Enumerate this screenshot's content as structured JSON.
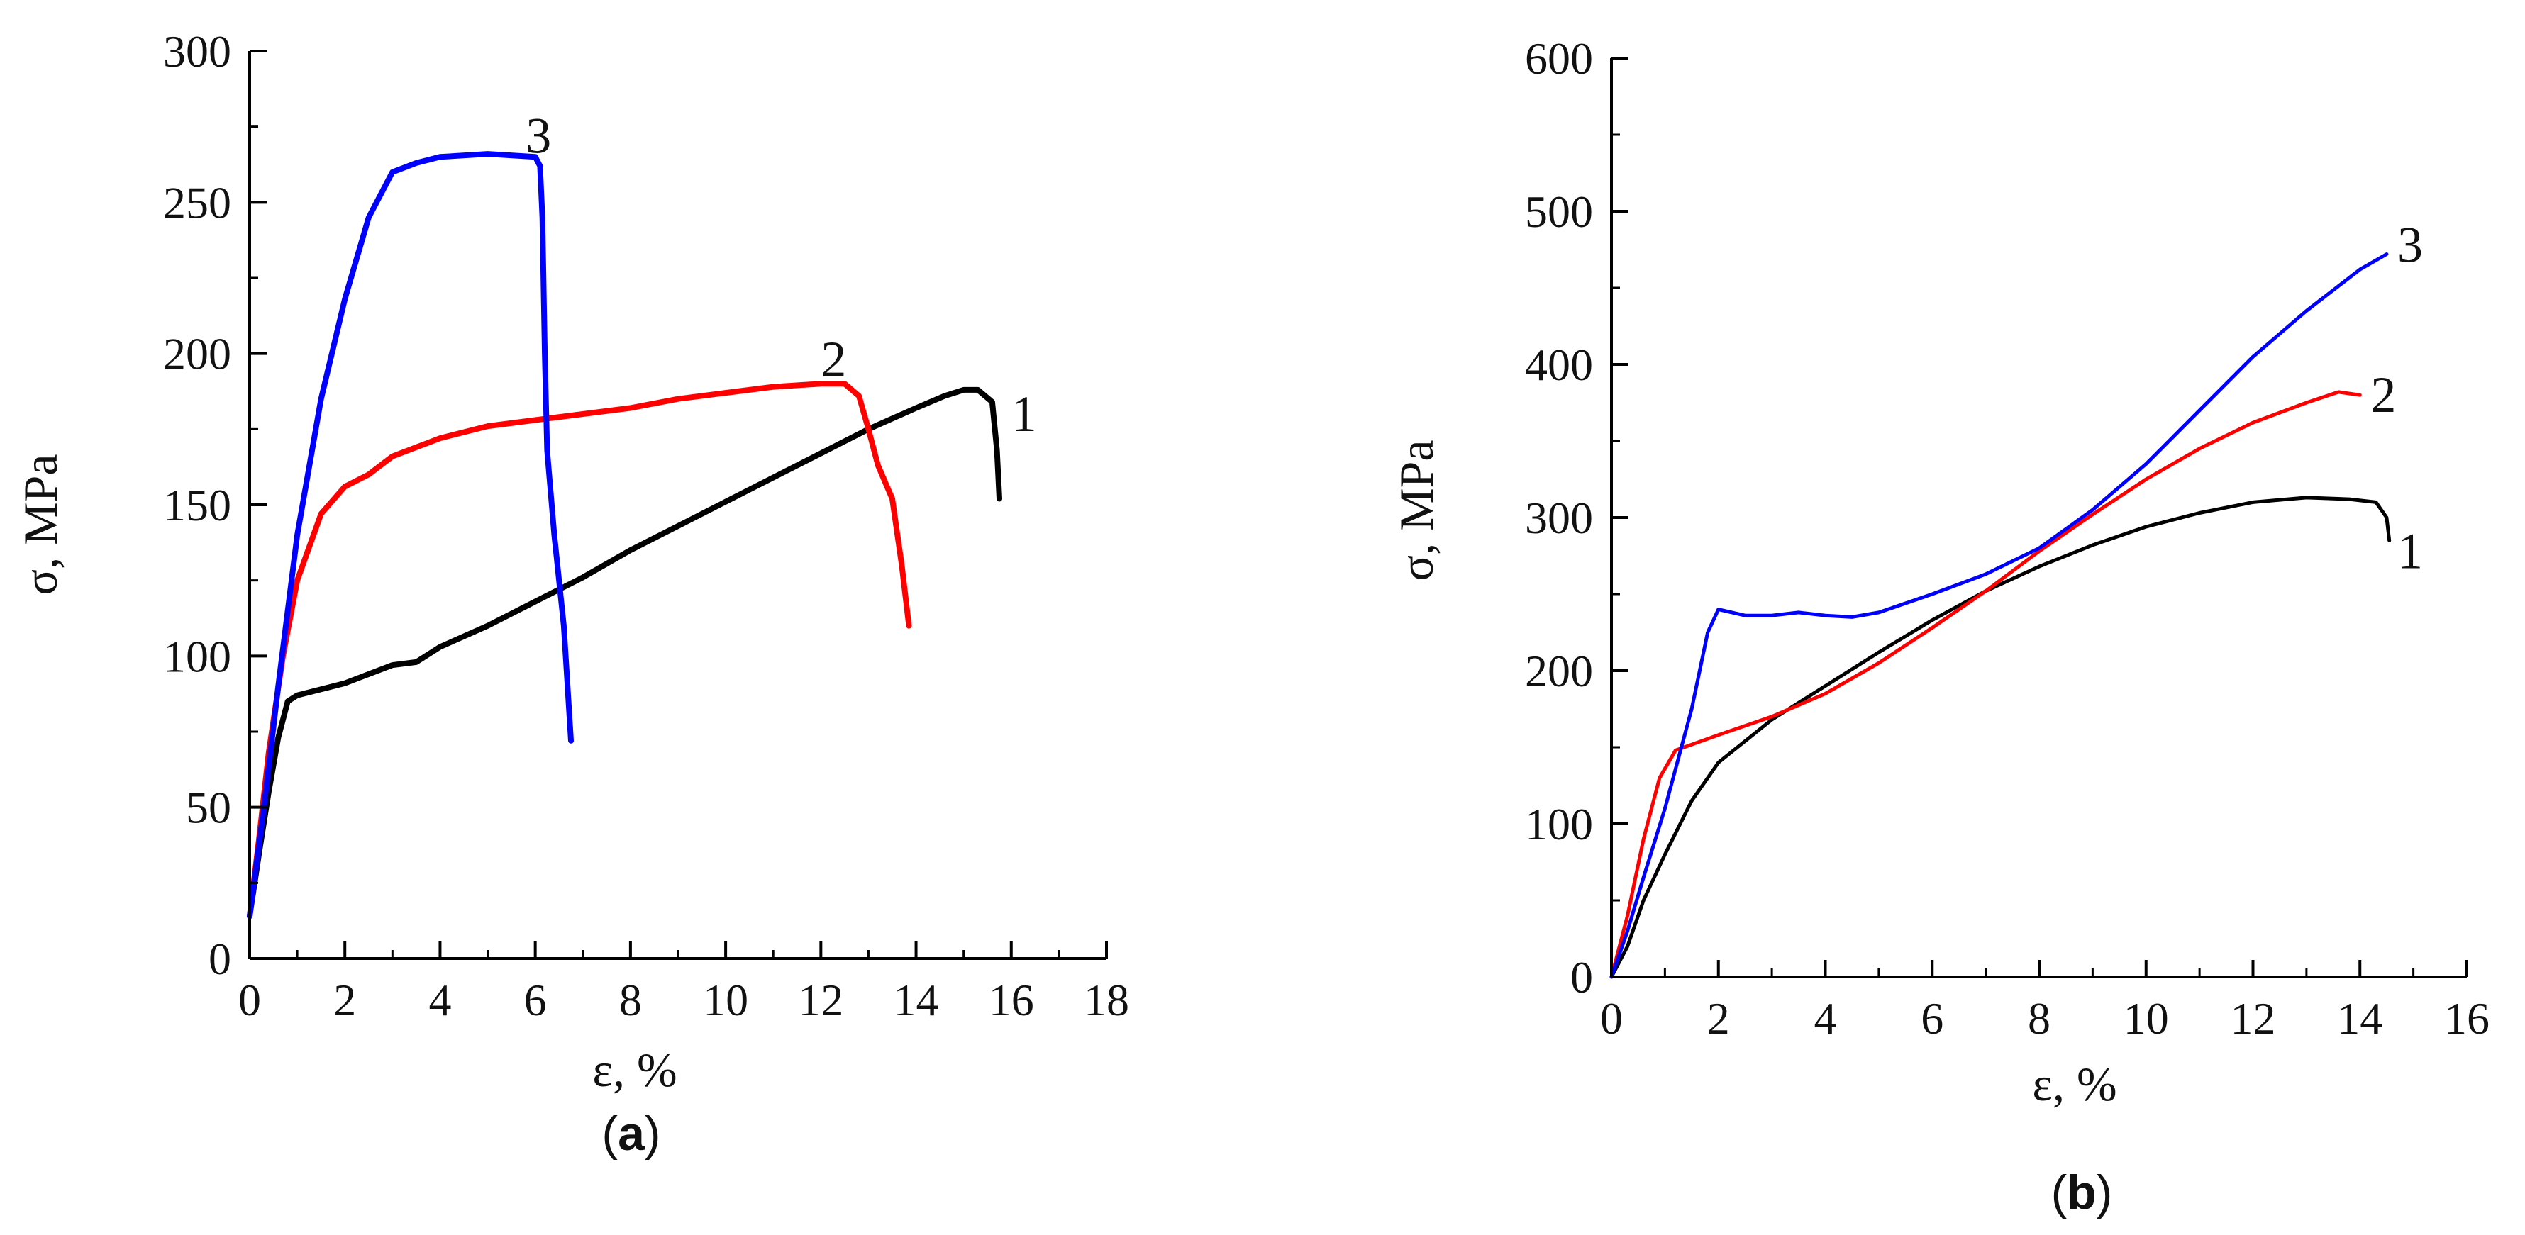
{
  "chart_data": [
    {
      "panel": "a",
      "type": "line",
      "xlabel": "ε, %",
      "ylabel": "σ, MPa",
      "xlim": [
        0,
        18
      ],
      "ylim": [
        0,
        300
      ],
      "xticks": [
        0,
        2,
        4,
        6,
        8,
        10,
        12,
        14,
        16,
        18
      ],
      "yticks": [
        0,
        50,
        100,
        150,
        200,
        250,
        300
      ],
      "series": [
        {
          "name": "1",
          "color": "#000000",
          "label_at": [
            16.0,
            180
          ],
          "points": [
            [
              0,
              14
            ],
            [
              0.2,
              35
            ],
            [
              0.4,
              55
            ],
            [
              0.6,
              73
            ],
            [
              0.8,
              85
            ],
            [
              1.0,
              87
            ],
            [
              1.5,
              89
            ],
            [
              2.0,
              91
            ],
            [
              2.5,
              94
            ],
            [
              3.0,
              97
            ],
            [
              3.5,
              98
            ],
            [
              4.0,
              103
            ],
            [
              5.0,
              110
            ],
            [
              6.0,
              118
            ],
            [
              7.0,
              126
            ],
            [
              8.0,
              135
            ],
            [
              9.0,
              143
            ],
            [
              10.0,
              151
            ],
            [
              11.0,
              159
            ],
            [
              12.0,
              167
            ],
            [
              13.0,
              175
            ],
            [
              14.0,
              182
            ],
            [
              14.6,
              186
            ],
            [
              15.0,
              188
            ],
            [
              15.3,
              188
            ],
            [
              15.6,
              184
            ],
            [
              15.7,
              168
            ],
            [
              15.75,
              152
            ]
          ]
        },
        {
          "name": "2",
          "color": "#ff0000",
          "label_at": [
            12.0,
            198
          ],
          "points": [
            [
              0,
              14
            ],
            [
              0.2,
              40
            ],
            [
              0.4,
              68
            ],
            [
              0.7,
              100
            ],
            [
              1.0,
              125
            ],
            [
              1.5,
              147
            ],
            [
              2.0,
              156
            ],
            [
              2.5,
              160
            ],
            [
              3.0,
              166
            ],
            [
              4.0,
              172
            ],
            [
              5.0,
              176
            ],
            [
              6.0,
              178
            ],
            [
              7.0,
              180
            ],
            [
              8.0,
              182
            ],
            [
              9.0,
              185
            ],
            [
              10.0,
              187
            ],
            [
              11.0,
              189
            ],
            [
              12.0,
              190
            ],
            [
              12.5,
              190
            ],
            [
              12.8,
              186
            ],
            [
              13.0,
              175
            ],
            [
              13.2,
              163
            ],
            [
              13.5,
              152
            ],
            [
              13.7,
              130
            ],
            [
              13.85,
              110
            ]
          ]
        },
        {
          "name": "3",
          "color": "#0000ff",
          "label_at": [
            5.8,
            272
          ],
          "points": [
            [
              0,
              14
            ],
            [
              0.3,
              50
            ],
            [
              0.6,
              90
            ],
            [
              1.0,
              140
            ],
            [
              1.5,
              185
            ],
            [
              2.0,
              218
            ],
            [
              2.5,
              245
            ],
            [
              3.0,
              260
            ],
            [
              3.5,
              263
            ],
            [
              4.0,
              265
            ],
            [
              5.0,
              266
            ],
            [
              6.0,
              265
            ],
            [
              6.1,
              262
            ],
            [
              6.15,
              245
            ],
            [
              6.2,
              200
            ],
            [
              6.25,
              168
            ],
            [
              6.4,
              140
            ],
            [
              6.6,
              110
            ],
            [
              6.75,
              72
            ]
          ]
        }
      ]
    },
    {
      "panel": "b",
      "type": "line",
      "xlabel": "ε, %",
      "ylabel": "σ, MPa",
      "xlim": [
        0,
        16
      ],
      "ylim": [
        0,
        600
      ],
      "xticks": [
        0,
        2,
        4,
        6,
        8,
        10,
        12,
        14,
        16
      ],
      "yticks": [
        0,
        100,
        200,
        300,
        400,
        500,
        600
      ],
      "series": [
        {
          "name": "1",
          "color": "#000000",
          "label_at": [
            14.7,
            278
          ],
          "points": [
            [
              0,
              0
            ],
            [
              0.3,
              20
            ],
            [
              0.6,
              50
            ],
            [
              1.0,
              80
            ],
            [
              1.5,
              115
            ],
            [
              2.0,
              140
            ],
            [
              3.0,
              168
            ],
            [
              4.0,
              190
            ],
            [
              5.0,
              212
            ],
            [
              6.0,
              233
            ],
            [
              7.0,
              252
            ],
            [
              8.0,
              268
            ],
            [
              9.0,
              282
            ],
            [
              10.0,
              294
            ],
            [
              11.0,
              303
            ],
            [
              12.0,
              310
            ],
            [
              13.0,
              313
            ],
            [
              13.8,
              312
            ],
            [
              14.3,
              310
            ],
            [
              14.5,
              300
            ],
            [
              14.55,
              285
            ]
          ]
        },
        {
          "name": "2",
          "color": "#ff0000",
          "label_at": [
            14.2,
            380
          ],
          "points": [
            [
              0,
              0
            ],
            [
              0.3,
              40
            ],
            [
              0.6,
              90
            ],
            [
              0.9,
              130
            ],
            [
              1.2,
              148
            ],
            [
              2.0,
              158
            ],
            [
              3.0,
              170
            ],
            [
              4.0,
              185
            ],
            [
              5.0,
              205
            ],
            [
              6.0,
              228
            ],
            [
              7.0,
              252
            ],
            [
              8.0,
              278
            ],
            [
              9.0,
              302
            ],
            [
              10.0,
              325
            ],
            [
              11.0,
              345
            ],
            [
              12.0,
              362
            ],
            [
              13.0,
              375
            ],
            [
              13.6,
              382
            ],
            [
              14.0,
              380
            ]
          ]
        },
        {
          "name": "3",
          "color": "#0000ff",
          "label_at": [
            14.7,
            478
          ],
          "points": [
            [
              0,
              0
            ],
            [
              0.3,
              30
            ],
            [
              0.6,
              65
            ],
            [
              1.0,
              110
            ],
            [
              1.5,
              175
            ],
            [
              1.8,
              225
            ],
            [
              2.0,
              240
            ],
            [
              2.5,
              236
            ],
            [
              3.0,
              236
            ],
            [
              3.5,
              238
            ],
            [
              4.0,
              236
            ],
            [
              4.5,
              235
            ],
            [
              5.0,
              238
            ],
            [
              6.0,
              250
            ],
            [
              7.0,
              263
            ],
            [
              8.0,
              280
            ],
            [
              9.0,
              305
            ],
            [
              10.0,
              335
            ],
            [
              11.0,
              370
            ],
            [
              12.0,
              405
            ],
            [
              13.0,
              435
            ],
            [
              14.0,
              462
            ],
            [
              14.5,
              472
            ]
          ]
        }
      ]
    }
  ],
  "panels": {
    "a_label": "a",
    "b_label": "b",
    "paren_open": "(",
    "paren_close": ")"
  }
}
